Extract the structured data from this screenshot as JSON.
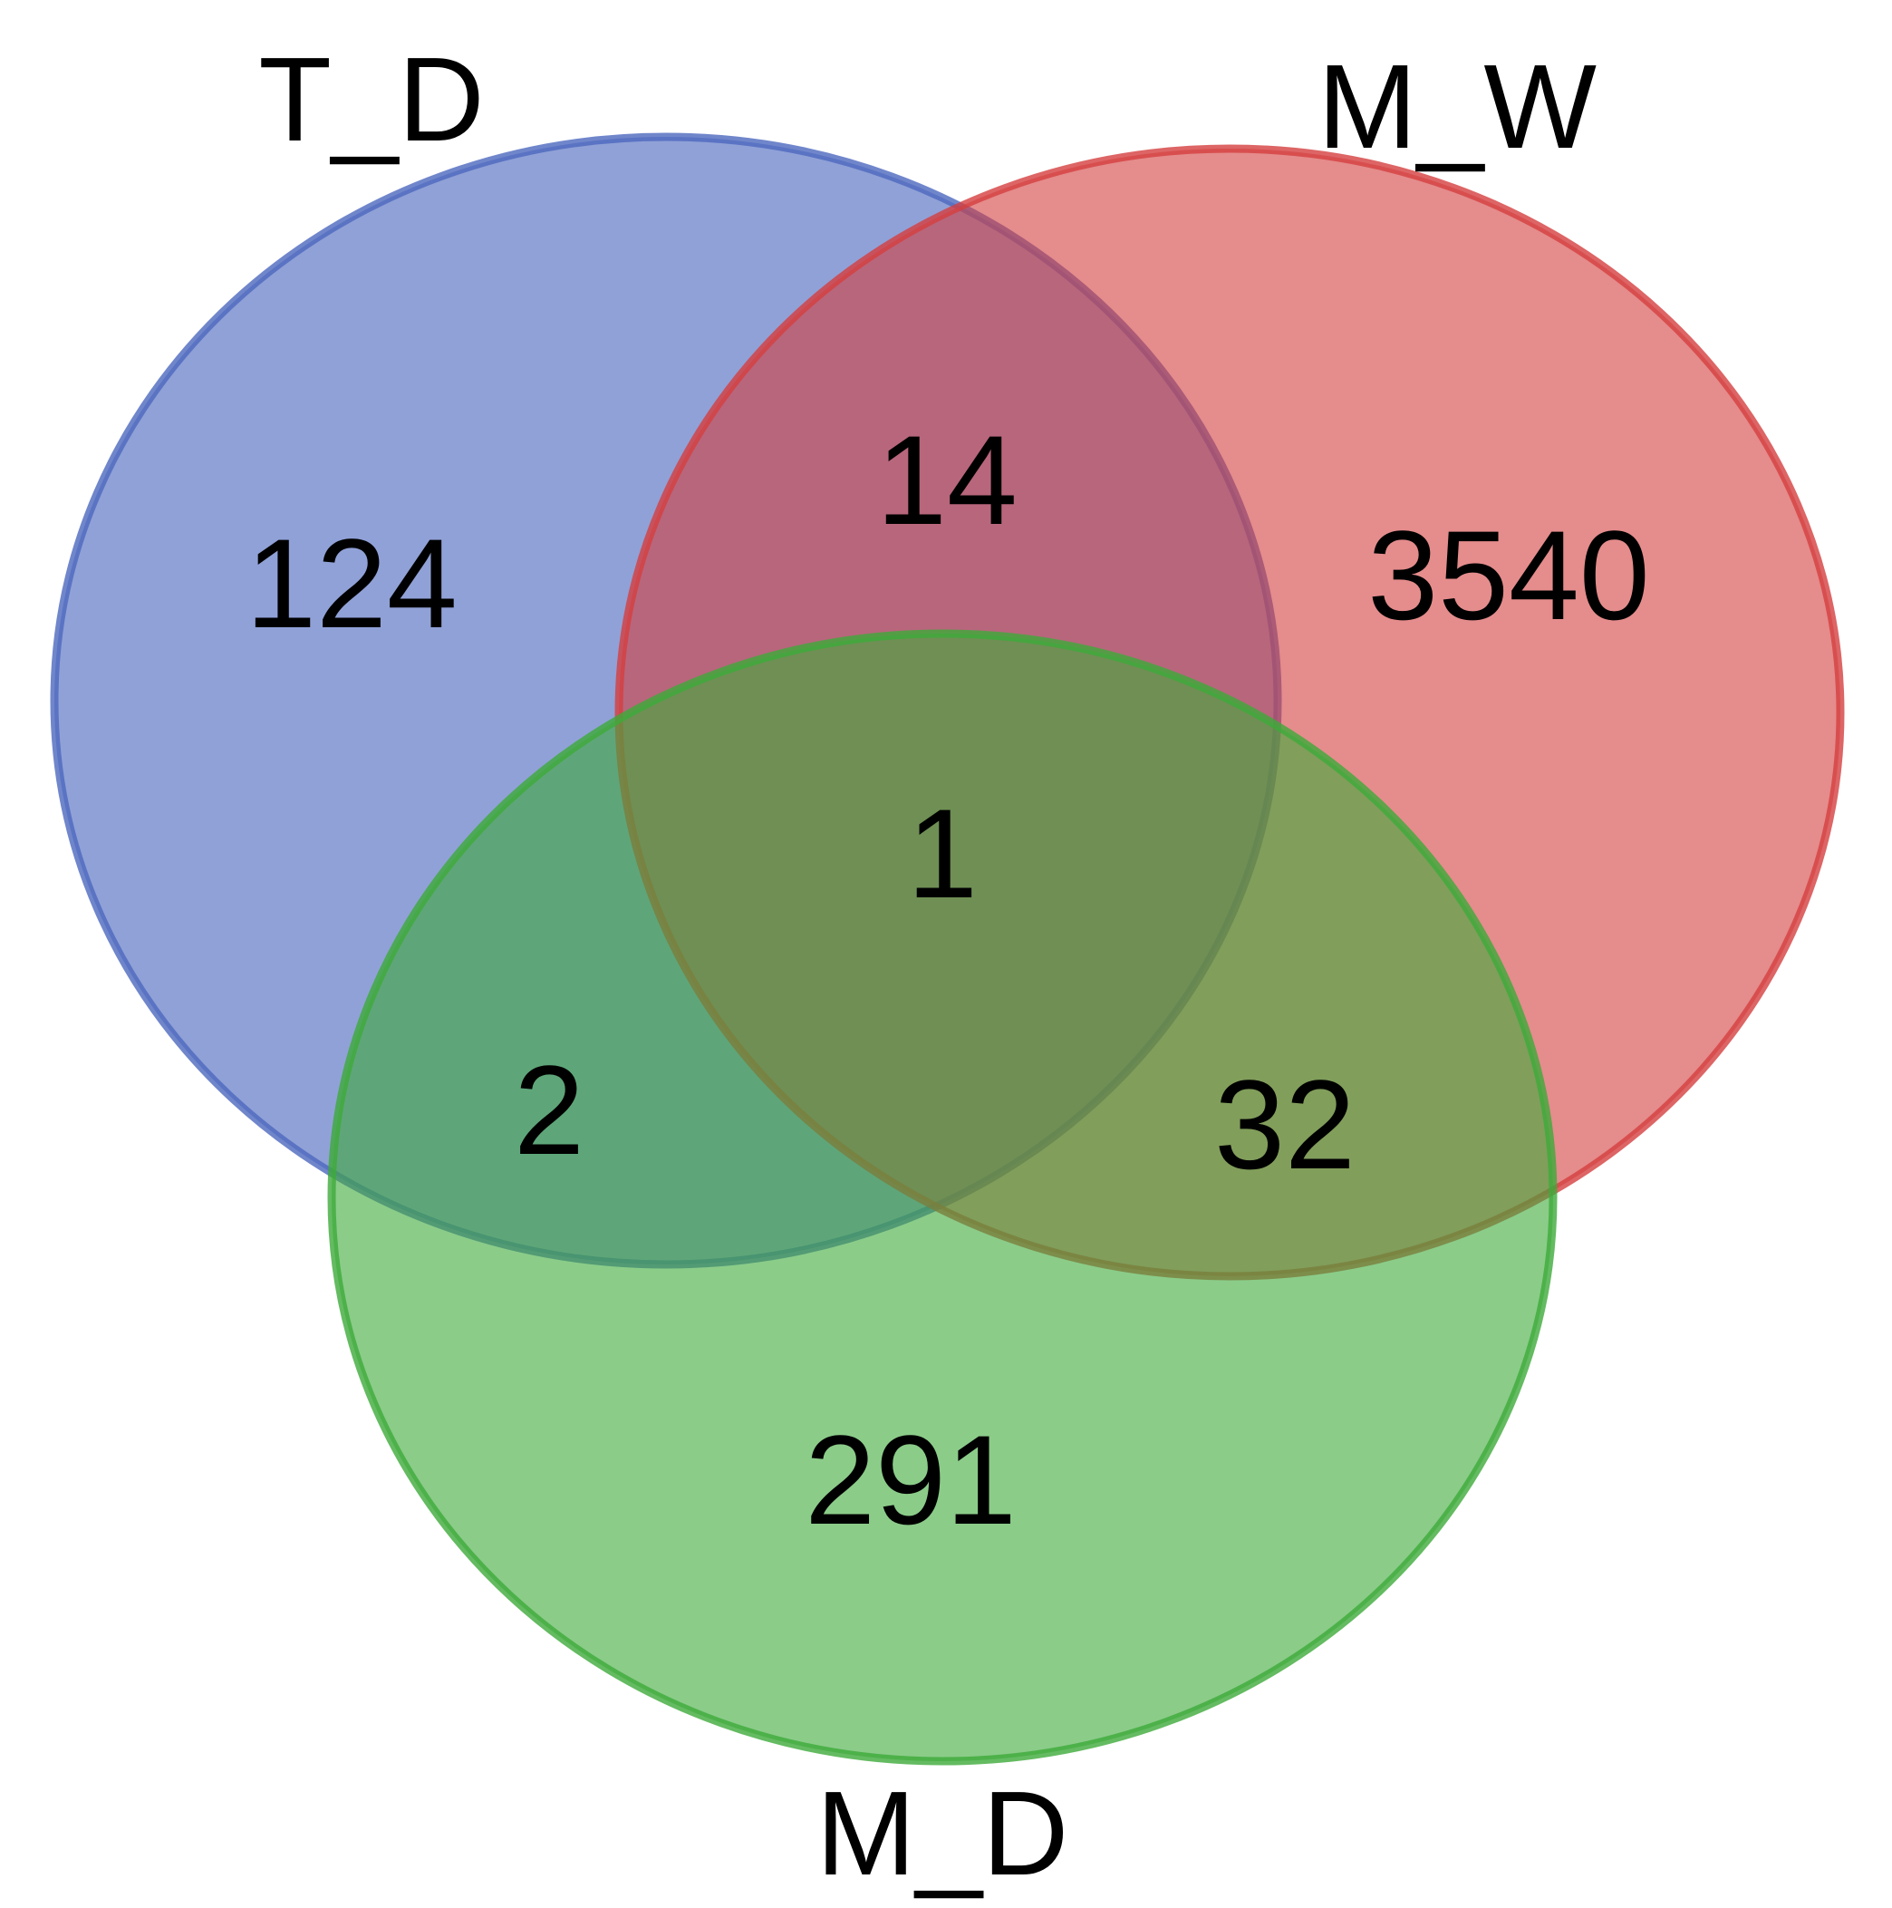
{
  "venn": {
    "sets": [
      {
        "key": "td",
        "label": "T_D",
        "fill": "#4C68BE",
        "stroke": "#4C68BE"
      },
      {
        "key": "mw",
        "label": "M_W",
        "fill": "#D43F3F",
        "stroke": "#D43F3F"
      },
      {
        "key": "md",
        "label": "M_D",
        "fill": "#3DAA3A",
        "stroke": "#3DAA3A"
      }
    ],
    "regions": {
      "td_only": "124",
      "mw_only": "3540",
      "md_only": "291",
      "td_mw": "14",
      "td_md": "2",
      "mw_md": "32",
      "td_mw_md": "1"
    }
  }
}
